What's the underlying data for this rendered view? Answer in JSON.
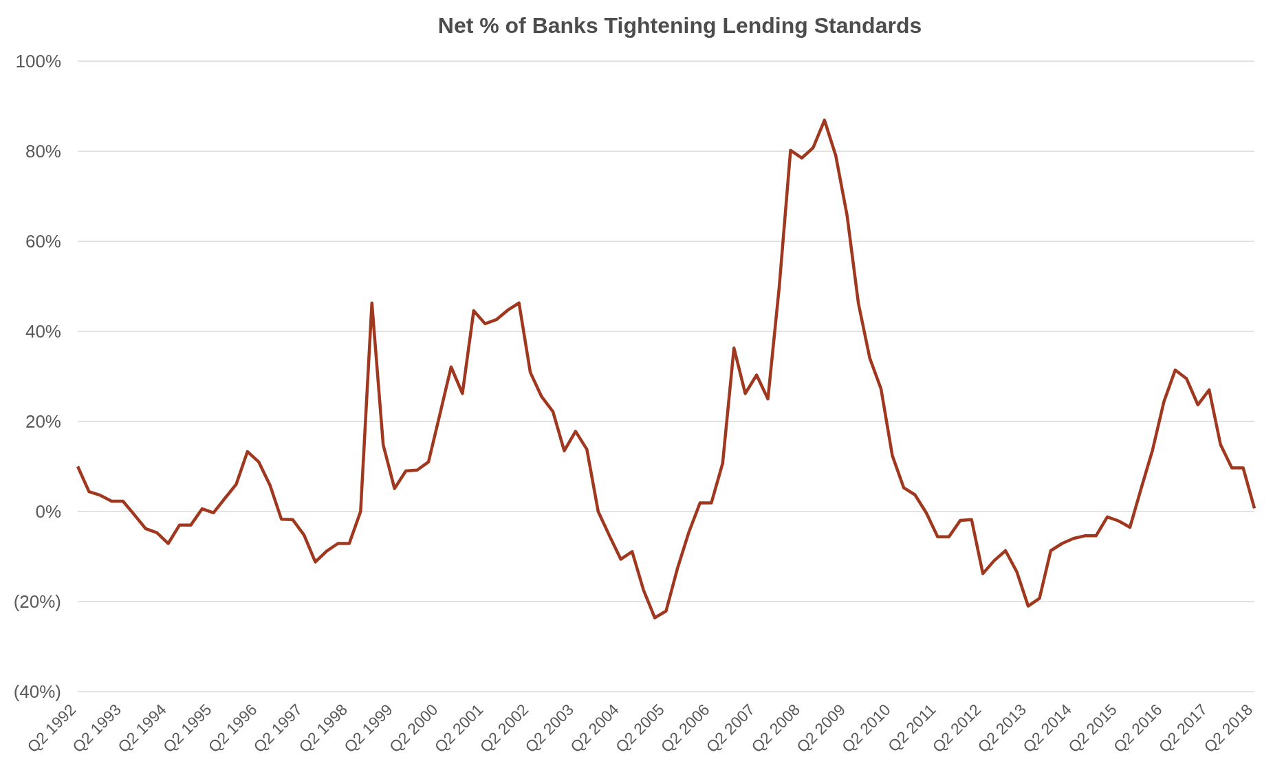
{
  "chart_data": {
    "type": "line",
    "title": "Net % of Banks Tightening Lending Standards",
    "categories": [
      "Q2 1992",
      null,
      null,
      null,
      "Q2 1993",
      null,
      null,
      null,
      "Q2 1994",
      null,
      null,
      null,
      "Q2 1995",
      null,
      null,
      null,
      "Q2 1996",
      null,
      null,
      null,
      "Q2 1997",
      null,
      null,
      null,
      "Q2 1998",
      null,
      null,
      null,
      "Q2 1999",
      null,
      null,
      null,
      "Q2 2000",
      null,
      null,
      null,
      "Q2 2001",
      null,
      null,
      null,
      "Q2 2002",
      null,
      null,
      null,
      "Q2 2003",
      null,
      null,
      null,
      "Q2 2004",
      null,
      null,
      null,
      "Q2 2005",
      null,
      null,
      null,
      "Q2 2006",
      null,
      null,
      null,
      "Q2 2007",
      null,
      null,
      null,
      "Q2 2008",
      null,
      null,
      null,
      "Q2 2009",
      null,
      null,
      null,
      "Q2 2010",
      null,
      null,
      null,
      "Q2 2011",
      null,
      null,
      null,
      "Q2 2012",
      null,
      null,
      null,
      "Q2 2013",
      null,
      null,
      null,
      "Q2 2014",
      null,
      null,
      null,
      "Q2 2015",
      null,
      null,
      null,
      "Q2 2016",
      null,
      null,
      null,
      "Q2 2017",
      null,
      null,
      null,
      "Q2 2018"
    ],
    "series": [
      {
        "color": "#a0381f",
        "values": [
          10.0,
          4.4,
          3.6,
          2.3,
          2.3,
          -0.7,
          -3.8,
          -4.7,
          -7.1,
          -3.0,
          -3.0,
          0.6,
          -0.3,
          2.9,
          6.0,
          13.3,
          11.0,
          5.8,
          -1.7,
          -1.8,
          -5.2,
          -11.2,
          -8.8,
          -7.1,
          -7.1,
          0,
          46.3,
          14.8,
          5.1,
          9.0,
          9.2,
          11.0,
          21.5,
          32.1,
          26.2,
          44.6,
          41.7,
          42.6,
          44.7,
          46.3,
          30.9,
          25.5,
          22.2,
          13.5,
          17.8,
          13.8,
          0,
          -5.4,
          -10.6,
          -8.9,
          -17.4,
          -23.6,
          -22.1,
          -12.7,
          -4.7,
          1.9,
          1.9,
          10.7,
          36.3,
          26.2,
          30.3,
          25.0,
          49.8,
          80.2,
          78.5,
          80.8,
          86.9,
          79.0,
          65.7,
          46.2,
          34.1,
          27.2,
          12.4,
          5.3,
          3.7,
          -0.3,
          -5.6,
          -5.6,
          -2.0,
          -1.8,
          -13.8,
          -10.9,
          -8.7,
          -13.4,
          -21.0,
          -19.3,
          -8.7,
          -7.1,
          -6.0,
          -5.4,
          -5.4,
          -1.2,
          -2.1,
          -3.5,
          5.2,
          13.7,
          24.4,
          31.4,
          29.5,
          23.7,
          27.0,
          14.9,
          9.7,
          9.7,
          0.7
        ]
      }
    ],
    "ylim": [
      -40,
      100
    ],
    "yticks": [
      {
        "value": -40,
        "label": "(40%)"
      },
      {
        "value": -20,
        "label": "(20%)"
      },
      {
        "value": 0,
        "label": "0%"
      },
      {
        "value": 20,
        "label": "20%"
      },
      {
        "value": 40,
        "label": "40%"
      },
      {
        "value": 60,
        "label": "60%"
      },
      {
        "value": 80,
        "label": "80%"
      },
      {
        "value": 100,
        "label": "100%"
      }
    ],
    "grid": "y",
    "marker": "none",
    "line_style": "solid"
  }
}
